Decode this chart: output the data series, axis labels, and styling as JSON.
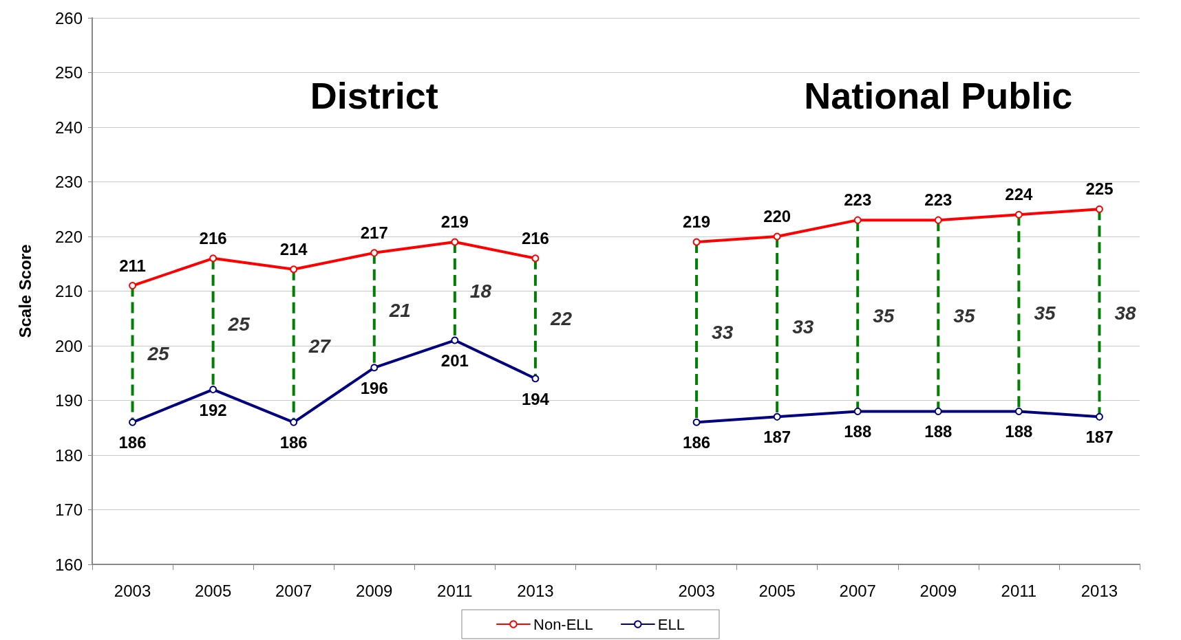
{
  "chart_data": {
    "type": "line",
    "ylabel": "Scale Score",
    "categories": [
      "2003",
      "2005",
      "2007",
      "2009",
      "2011",
      "2013",
      null,
      "2003",
      "2005",
      "2007",
      "2009",
      "2011",
      "2013"
    ],
    "series": [
      {
        "name": "Non-ELL",
        "color": "#ff0000",
        "values": [
          211,
          216,
          214,
          217,
          219,
          216,
          null,
          219,
          220,
          223,
          223,
          224,
          225
        ]
      },
      {
        "name": "ELL",
        "color": "#000080",
        "values": [
          186,
          192,
          186,
          196,
          201,
          194,
          null,
          186,
          187,
          188,
          188,
          188,
          187
        ]
      }
    ],
    "annotations": [
      "District",
      "National Public",
      "25",
      "25",
      "27",
      "21",
      "18",
      "22",
      "33",
      "33",
      "35",
      "35",
      "35",
      "38"
    ],
    "ylim": [
      160,
      260
    ],
    "yticks": [
      160,
      170,
      180,
      190,
      200,
      210,
      220,
      230,
      240,
      250,
      260
    ],
    "grid": "y",
    "legend": "bottom",
    "marker": "circle",
    "line_style": "solid",
    "data_labels": true
  }
}
